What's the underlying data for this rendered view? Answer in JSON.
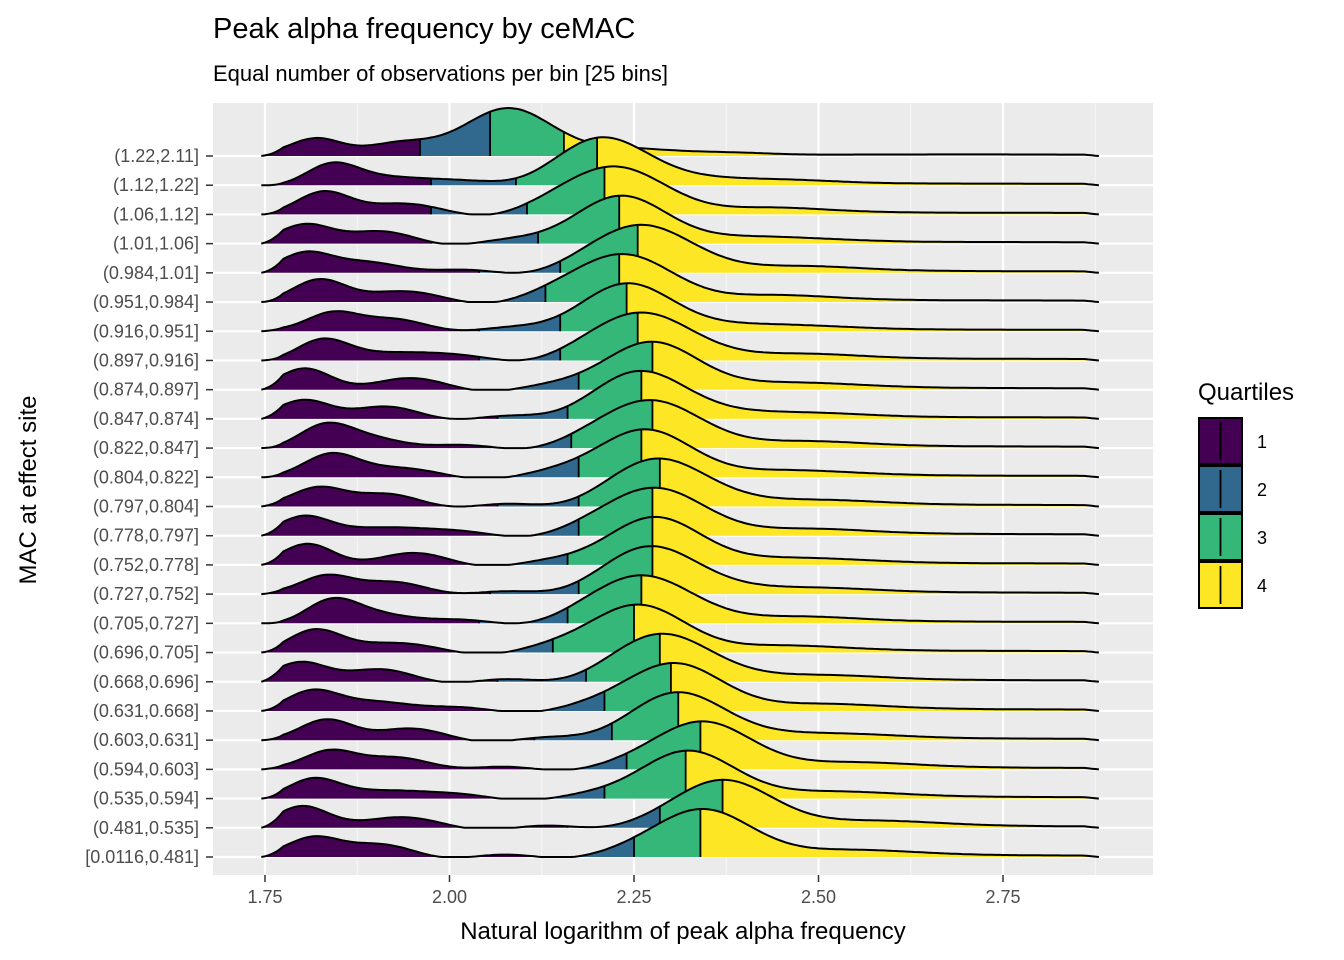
{
  "chart_data": {
    "type": "ridgeline",
    "title": "Peak alpha frequency by ceMAC",
    "subtitle": "Equal number of observations per bin [25 bins]",
    "xlabel": "Natural logarithm of peak alpha frequency",
    "ylabel": "MAC at effect site",
    "xlim": [
      1.665,
      3.925
    ],
    "x_ticks": [
      1.75,
      2.0,
      2.25,
      2.5,
      2.75
    ],
    "x_tick_labels": [
      "1.75",
      "2.00",
      "2.25",
      "2.50",
      "2.75"
    ],
    "x_range_data": [
      1.745,
      2.88
    ],
    "grid": true,
    "legend": {
      "title": "Quartiles",
      "position": "right",
      "entries": [
        "1",
        "2",
        "3",
        "4"
      ]
    },
    "quartile_colors": [
      "#440154",
      "#31688e",
      "#35b779",
      "#fde725"
    ],
    "categories": [
      "(1.22,2.11]",
      "(1.12,1.22]",
      "(1.06,1.12]",
      "(1.01,1.06]",
      "(0.984,1.01]",
      "(0.951,0.984]",
      "(0.916,0.951]",
      "(0.897,0.916]",
      "(0.874,0.897]",
      "(0.847,0.874]",
      "(0.822,0.847]",
      "(0.804,0.822]",
      "(0.797,0.804]",
      "(0.778,0.797]",
      "(0.752,0.778]",
      "(0.727,0.752]",
      "(0.705,0.727]",
      "(0.696,0.705]",
      "(0.668,0.696]",
      "(0.631,0.668]",
      "(0.603,0.631]",
      "(0.594,0.603]",
      "(0.535,0.594]",
      "(0.481,0.535]",
      "[0.0116,0.481]"
    ],
    "quartile_cuts": [
      [
        1.96,
        2.055,
        2.155
      ],
      [
        1.975,
        2.09,
        2.2
      ],
      [
        1.975,
        2.105,
        2.21
      ],
      [
        1.975,
        2.12,
        2.23
      ],
      [
        2.04,
        2.15,
        2.255
      ],
      [
        2.025,
        2.13,
        2.23
      ],
      [
        2.04,
        2.15,
        2.24
      ],
      [
        2.04,
        2.15,
        2.255
      ],
      [
        2.065,
        2.175,
        2.275
      ],
      [
        2.065,
        2.16,
        2.26
      ],
      [
        2.055,
        2.165,
        2.275
      ],
      [
        2.055,
        2.175,
        2.26
      ],
      [
        2.065,
        2.175,
        2.285
      ],
      [
        2.065,
        2.175,
        2.275
      ],
      [
        2.04,
        2.16,
        2.275
      ],
      [
        2.055,
        2.175,
        2.275
      ],
      [
        2.04,
        2.16,
        2.26
      ],
      [
        2.015,
        2.14,
        2.25
      ],
      [
        2.065,
        2.185,
        2.285
      ],
      [
        2.09,
        2.21,
        2.3
      ],
      [
        2.115,
        2.22,
        2.31
      ],
      [
        2.115,
        2.24,
        2.34
      ],
      [
        2.08,
        2.21,
        2.32
      ],
      [
        2.16,
        2.285,
        2.37
      ],
      [
        2.165,
        2.25,
        2.34
      ]
    ],
    "density_peak": [
      2.08,
      2.21,
      2.22,
      2.23,
      2.26,
      2.23,
      2.24,
      2.26,
      2.27,
      2.26,
      2.27,
      2.26,
      2.285,
      2.275,
      2.275,
      2.275,
      2.26,
      2.25,
      2.29,
      2.3,
      2.31,
      2.34,
      2.32,
      2.37,
      2.34
    ]
  }
}
